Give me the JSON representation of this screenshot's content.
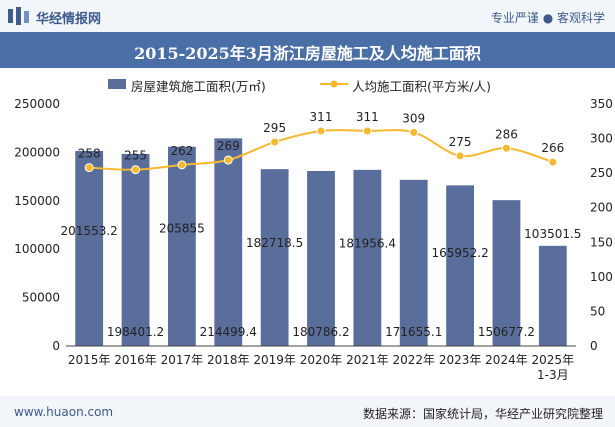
{
  "header": {
    "brand": "华经情报网",
    "slogan": "专业严谨 ● 客观科学"
  },
  "footer": {
    "url": "www.huaon.com",
    "source": "数据来源：国家统计局，华经产业研究院整理"
  },
  "watermark": "华经产业研究院",
  "colors": {
    "bar": "#5a6e9c",
    "line": "#f5b82e",
    "title_band": "#4a6ea6"
  },
  "chart_data": {
    "type": "bar+line",
    "title": "2015-2025年3月浙江房屋施工及人均施工面积",
    "categories": [
      "2015年",
      "2016年",
      "2017年",
      "2018年",
      "2019年",
      "2020年",
      "2021年",
      "2022年",
      "2023年",
      "2024年",
      "2025年\n1-3月"
    ],
    "series": [
      {
        "name": "房屋建筑施工面积(万㎡)",
        "type": "bar",
        "axis": "left",
        "values": [
          201553.2,
          198401.2,
          205855,
          214499.4,
          182718.5,
          180786.2,
          181956.4,
          171655.1,
          165952.2,
          150677.2,
          103501.5
        ],
        "labels": [
          "201553.2",
          "198401.2",
          "205855",
          "214499.4",
          "182718.5",
          "180786.2",
          "181956.4",
          "171655.1",
          "165952.2",
          "150677.2",
          "103501.5"
        ]
      },
      {
        "name": "人均施工面积(平方米/人)",
        "type": "line",
        "axis": "right",
        "values": [
          258,
          255,
          262,
          269,
          295,
          311,
          311,
          309,
          275,
          286,
          266
        ],
        "labels": [
          "258",
          "255",
          "262",
          "269",
          "295",
          "311",
          "311",
          "309",
          "275",
          "286",
          "266"
        ]
      }
    ],
    "y_left": {
      "min": 0,
      "max": 250000,
      "ticks": [
        "0",
        "50000",
        "100000",
        "150000",
        "200000",
        "250000"
      ]
    },
    "y_right": {
      "min": 0,
      "max": 350,
      "ticks": [
        "0",
        "50",
        "100",
        "150",
        "200",
        "250",
        "300",
        "350"
      ]
    },
    "legend_position": "top-center"
  }
}
